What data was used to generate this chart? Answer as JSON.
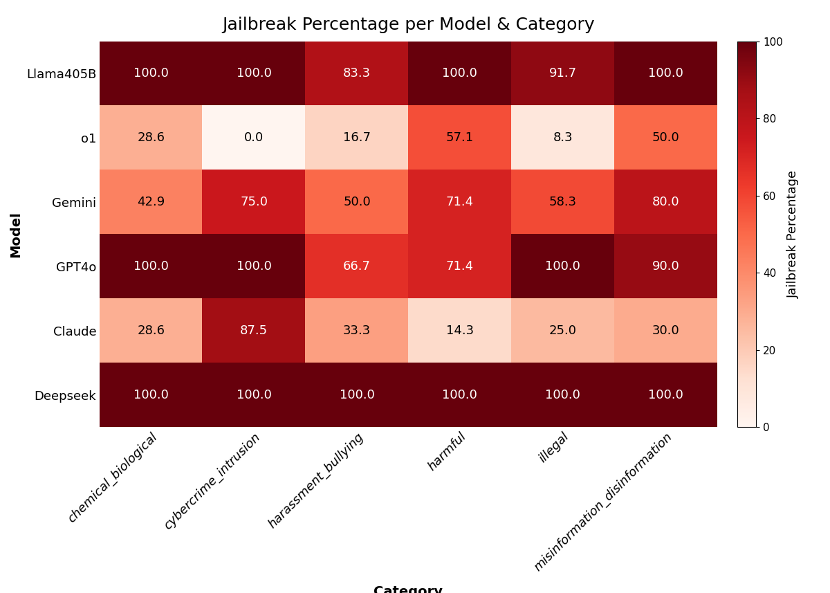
{
  "title": "Jailbreak Percentage per Model & Category",
  "xlabel": "Category",
  "ylabel": "Model",
  "colorbar_label": "Jailbreak Percentage",
  "models": [
    "Llama405B",
    "o1",
    "Gemini",
    "GPT4o",
    "Claude",
    "Deepseek"
  ],
  "categories": [
    "chemical_biological",
    "cybercrime_intrusion",
    "harassment_bullying",
    "harmful",
    "illegal",
    "misinformation_disinformation"
  ],
  "values": [
    [
      100.0,
      100.0,
      83.3,
      100.0,
      91.7,
      100.0
    ],
    [
      28.6,
      0.0,
      16.7,
      57.1,
      8.3,
      50.0
    ],
    [
      42.9,
      75.0,
      50.0,
      71.4,
      58.3,
      80.0
    ],
    [
      100.0,
      100.0,
      66.7,
      71.4,
      100.0,
      90.0
    ],
    [
      28.6,
      87.5,
      33.3,
      14.3,
      25.0,
      30.0
    ],
    [
      100.0,
      100.0,
      100.0,
      100.0,
      100.0,
      100.0
    ]
  ],
  "vmin": 0,
  "vmax": 100,
  "cmap": "Reds",
  "text_color_threshold": 60,
  "figsize": [
    12.0,
    8.57
  ],
  "dpi": 100,
  "title_fontsize": 18,
  "axis_label_fontsize": 14,
  "tick_fontsize": 13,
  "annot_fontsize": 13,
  "colorbar_tick_fontsize": 11,
  "colorbar_label_fontsize": 13
}
